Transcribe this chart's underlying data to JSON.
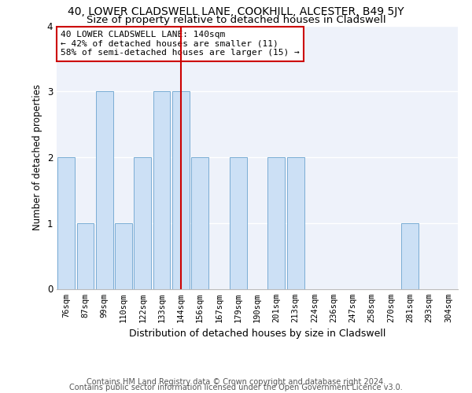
{
  "title1": "40, LOWER CLADSWELL LANE, COOKHILL, ALCESTER, B49 5JY",
  "title2": "Size of property relative to detached houses in Cladswell",
  "xlabel": "Distribution of detached houses by size in Cladswell",
  "ylabel": "Number of detached properties",
  "categories": [
    "76sqm",
    "87sqm",
    "99sqm",
    "110sqm",
    "122sqm",
    "133sqm",
    "144sqm",
    "156sqm",
    "167sqm",
    "179sqm",
    "190sqm",
    "201sqm",
    "213sqm",
    "224sqm",
    "236sqm",
    "247sqm",
    "258sqm",
    "270sqm",
    "281sqm",
    "293sqm",
    "304sqm"
  ],
  "values": [
    2,
    1,
    3,
    1,
    2,
    3,
    3,
    2,
    0,
    2,
    0,
    2,
    2,
    0,
    0,
    0,
    0,
    0,
    1,
    0,
    0
  ],
  "bar_color": "#cce0f5",
  "bar_edge_color": "#7aadd4",
  "vline_x": 6,
  "vline_color": "#cc0000",
  "annotation_lines": [
    "40 LOWER CLADSWELL LANE: 140sqm",
    "← 42% of detached houses are smaller (11)",
    "58% of semi-detached houses are larger (15) →"
  ],
  "annotation_box_color": "#ffffff",
  "annotation_box_edge": "#cc0000",
  "ylim": [
    0,
    4
  ],
  "yticks": [
    0,
    1,
    2,
    3,
    4
  ],
  "footer1": "Contains HM Land Registry data © Crown copyright and database right 2024.",
  "footer2": "Contains public sector information licensed under the Open Government Licence v3.0.",
  "bg_color": "#eef2fa",
  "grid_color": "#ffffff",
  "title_fontsize": 10,
  "subtitle_fontsize": 9.5,
  "axis_label_fontsize": 8.5,
  "tick_fontsize": 7.5,
  "footer_fontsize": 7
}
